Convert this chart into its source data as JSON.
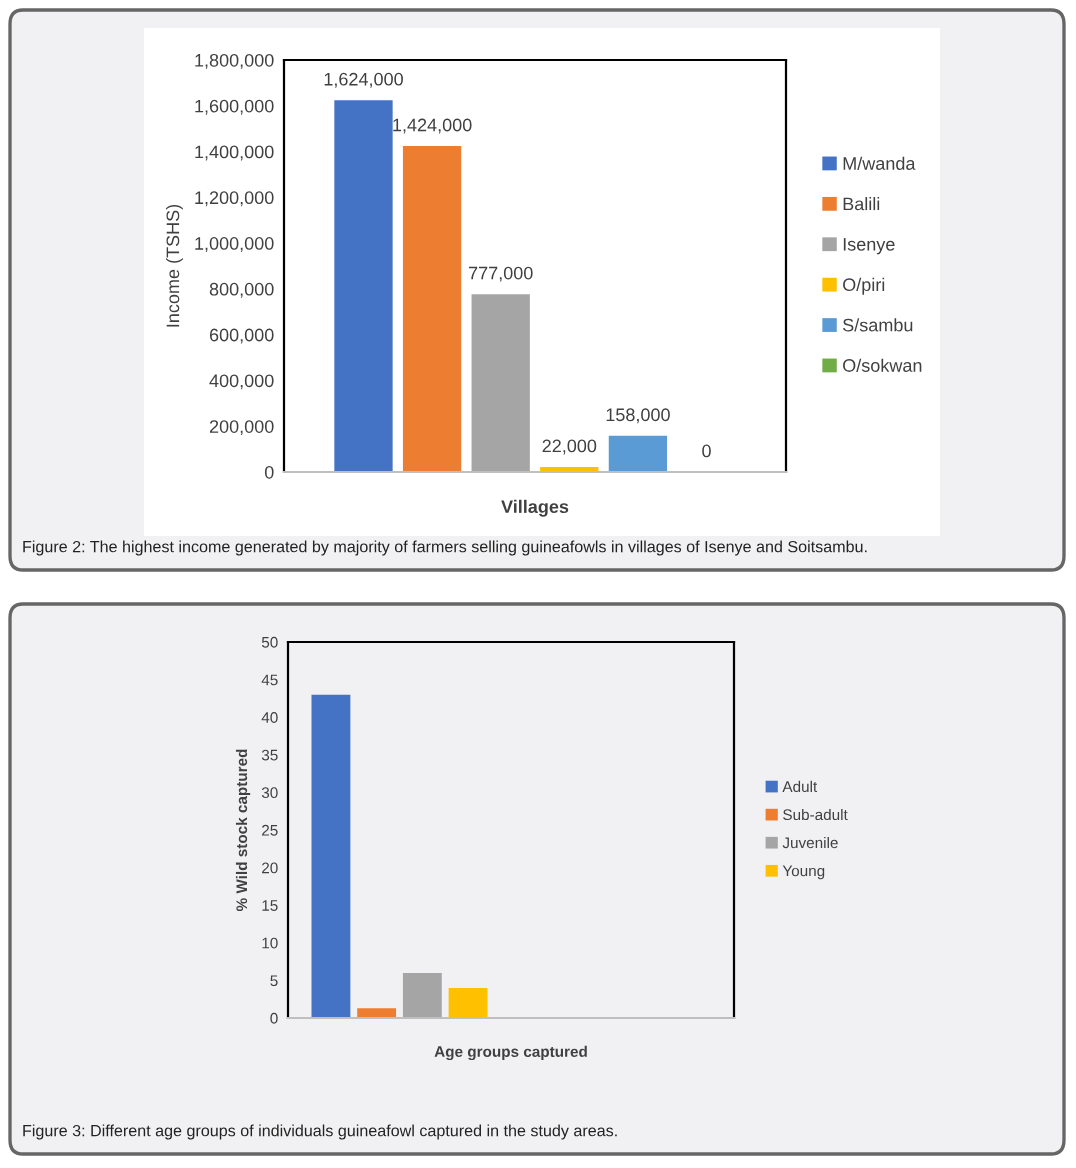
{
  "chart_data": [
    {
      "type": "bar",
      "xlabel": "Villages",
      "ylabel": "Income (TSHS)",
      "categories": [
        null
      ],
      "series": [
        {
          "name": "M/wanda",
          "color": "#4472c4",
          "values": [
            1624000
          ]
        },
        {
          "name": "Balili",
          "color": "#ed7d31",
          "values": [
            1424000
          ]
        },
        {
          "name": "Isenye",
          "color": "#a5a5a5",
          "values": [
            777000
          ]
        },
        {
          "name": "O/piri",
          "color": "#ffc000",
          "values": [
            22000
          ]
        },
        {
          "name": "S/sambu",
          "color": "#5b9bd5",
          "values": [
            158000
          ]
        },
        {
          "name": "O/sokwan",
          "color": "#70ad47",
          "values": [
            0
          ]
        }
      ],
      "ylim": [
        0,
        1800000
      ],
      "yticks": [
        {
          "value": 0,
          "label": "0"
        },
        {
          "value": 200000,
          "label": "200,000"
        },
        {
          "value": 400000,
          "label": "400,000"
        },
        {
          "value": 600000,
          "label": "600,000"
        },
        {
          "value": 800000,
          "label": "800,000"
        },
        {
          "value": 1000000,
          "label": "1,000,000"
        },
        {
          "value": 1200000,
          "label": "1,200,000"
        },
        {
          "value": 1400000,
          "label": "1,400,000"
        },
        {
          "value": 1600000,
          "label": "1,600,000"
        },
        {
          "value": 1800000,
          "label": "1,800,000"
        }
      ],
      "value_labels": [
        "1,624,000",
        "1,424,000",
        "777,000",
        "22,000",
        "158,000",
        "0"
      ],
      "legend": "right",
      "grid": false,
      "annotations": [
        "Figure 2: The highest income generated by majority of farmers selling guineafowls in villages of Isenye and Soitsambu."
      ]
    },
    {
      "type": "bar",
      "xlabel": "Age groups captured",
      "ylabel": "% Wild stock captured",
      "categories": [
        null,
        null
      ],
      "series": [
        {
          "name": "Adult",
          "color": "#4472c4",
          "values": [
            43,
            null
          ]
        },
        {
          "name": "Sub-adult",
          "color": "#ed7d31",
          "values": [
            1.3,
            null
          ]
        },
        {
          "name": "Juvenile",
          "color": "#a5a5a5",
          "values": [
            6,
            null
          ]
        },
        {
          "name": "Young",
          "color": "#ffc000",
          "values": [
            4,
            null
          ]
        }
      ],
      "ylim": [
        0,
        50
      ],
      "yticks": [
        0,
        5,
        10,
        15,
        20,
        25,
        30,
        35,
        40,
        45,
        50
      ],
      "legend": "right",
      "grid": false,
      "annotations": [
        "Figure 3: Different age groups of individuals guineafowl captured in the study areas."
      ]
    }
  ]
}
